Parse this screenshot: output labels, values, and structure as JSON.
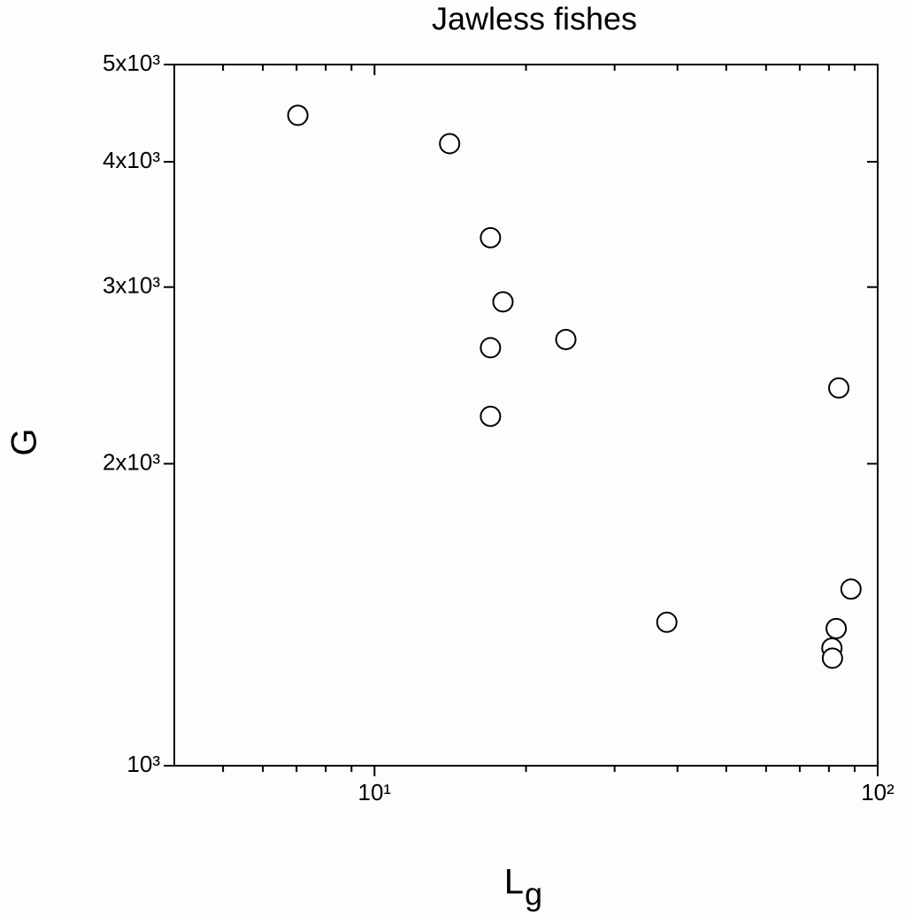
{
  "chart_data": {
    "type": "scatter",
    "title": "Jawless fishes",
    "xlabel": "L",
    "xlabel_subscript": "g",
    "ylabel": "G",
    "xscale": "log",
    "yscale": "log",
    "xlim": [
      4,
      100
    ],
    "ylim": [
      1000,
      5000
    ],
    "xticks": [
      {
        "value": 10,
        "label": "10¹"
      },
      {
        "value": 100,
        "label": "10²"
      }
    ],
    "xminorticks": [
      5,
      6,
      7,
      8,
      9,
      20,
      30,
      40,
      50,
      60,
      70,
      80,
      90
    ],
    "yticks": [
      {
        "value": 1000,
        "label": "10³"
      },
      {
        "value": 2000,
        "label": "2x10³"
      },
      {
        "value": 3000,
        "label": "3x10³"
      },
      {
        "value": 4000,
        "label": "4x10³"
      },
      {
        "value": 5000,
        "label": "5x10³"
      }
    ],
    "color": "#000000",
    "x": [
      7.04,
      14.1,
      17,
      18,
      17,
      24,
      17,
      83.7,
      88.5,
      38.1,
      82.7,
      81.1,
      81.3
    ],
    "values": [
      4450,
      4170,
      3360,
      2900,
      2610,
      2660,
      2230,
      2380,
      1500,
      1390,
      1370,
      1310,
      1280
    ]
  }
}
